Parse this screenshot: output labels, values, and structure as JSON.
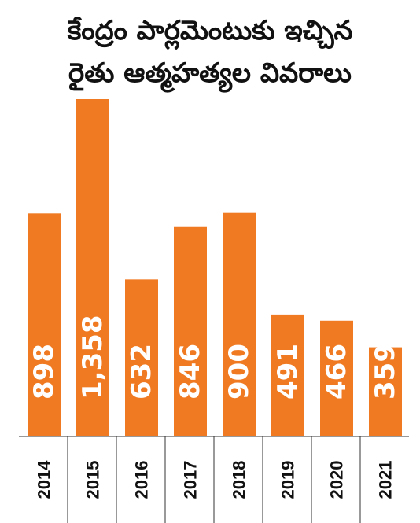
{
  "chart_data": {
    "type": "bar",
    "title": [
      "కేంద్రం పార్లమెంటుకు ఇచ్చిన",
      "రైతు ఆత్మహత్యల వివరాలు"
    ],
    "categories": [
      "2014",
      "2015",
      "2016",
      "2017",
      "2018",
      "2019",
      "2020",
      "2021"
    ],
    "values": [
      898,
      1358,
      632,
      846,
      900,
      491,
      466,
      359
    ],
    "value_labels": [
      "898",
      "1,358",
      "632",
      "846",
      "900",
      "491",
      "466",
      "359"
    ],
    "color": "#f07a22"
  }
}
